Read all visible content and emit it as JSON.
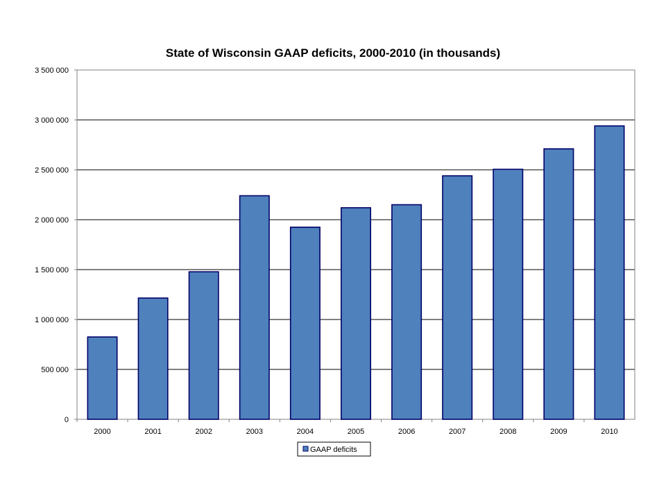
{
  "chart_data": {
    "type": "bar",
    "title": "State of Wisconsin GAAP deficits, 2000-2010 (in thousands)",
    "xlabel": "",
    "ylabel": "",
    "categories": [
      "2000",
      "2001",
      "2002",
      "2003",
      "2004",
      "2005",
      "2006",
      "2007",
      "2008",
      "2009",
      "2010"
    ],
    "series": [
      {
        "name": "GAAP deficits",
        "values": [
          825000,
          1215000,
          1478000,
          2240000,
          1925000,
          2120000,
          2150000,
          2440000,
          2505000,
          2710000,
          2940000
        ],
        "color": "#4F81BD",
        "border_color": "#000066"
      }
    ],
    "ylim": [
      0,
      3500000
    ],
    "yticks": [
      0,
      500000,
      1000000,
      1500000,
      2000000,
      2500000,
      3000000,
      3500000
    ],
    "ytick_labels": [
      "0",
      "500 000",
      "1 000 000",
      "1 500 000",
      "2 000 000",
      "2 500 000",
      "3 000 000",
      "3 500 000"
    ],
    "grid": true,
    "legend_position": "bottom"
  }
}
